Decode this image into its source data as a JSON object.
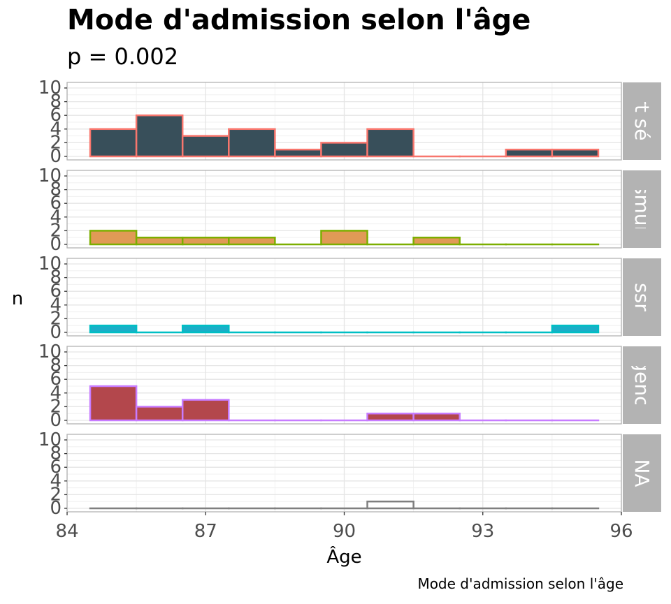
{
  "title": "Mode d'admission selon l'âge",
  "subtitle": "p = 0.002",
  "caption": "Mode d'admission selon l'âge",
  "chart_data": {
    "type": "bar",
    "subtype": "faceted-histogram",
    "xlabel": "Âge",
    "ylabel": "n",
    "xlim": [
      84,
      96
    ],
    "x_ticks": [
      84,
      87,
      90,
      93,
      96
    ],
    "ylim": [
      0,
      10
    ],
    "y_ticks": [
      0,
      2,
      4,
      6,
      8,
      10
    ],
    "grid": true,
    "bin_width": 1,
    "bins": [
      85,
      86,
      87,
      88,
      89,
      90,
      91,
      92,
      93,
      94,
      95
    ],
    "facets": [
      {
        "label": "court séjour",
        "visible_label": "urt séjo",
        "fill": "#384f5a",
        "outline": "#f8766d",
        "values": [
          4,
          6,
          3,
          4,
          1,
          2,
          4,
          0,
          0,
          1,
          1
        ]
      },
      {
        "label": "smur",
        "visible_label": "smur",
        "fill": "#e09a56",
        "outline": "#7cae00",
        "values": [
          2,
          1,
          1,
          1,
          0,
          2,
          0,
          1,
          0,
          0,
          0
        ]
      },
      {
        "label": "ssr",
        "visible_label": "ssr",
        "fill": "#1aaec8",
        "outline": "#00bfc4",
        "values": [
          1,
          0,
          1,
          0,
          0,
          0,
          0,
          0,
          0,
          0,
          1
        ]
      },
      {
        "label": "urgence",
        "visible_label": "rgence",
        "fill": "#b3474c",
        "outline": "#c77cff",
        "values": [
          5,
          2,
          3,
          0,
          0,
          0,
          1,
          1,
          0,
          0,
          0
        ]
      },
      {
        "label": "NA",
        "visible_label": "NA",
        "fill": "#ffffff",
        "outline": "#7f7f7f",
        "values": [
          0,
          0,
          0,
          0,
          0,
          0,
          1,
          0,
          0,
          0,
          0
        ]
      }
    ],
    "colors": {
      "strip": "#b3b3b3",
      "panel_border": "#b3b3b3",
      "grid": "#e5e5e5",
      "tick_text": "#4d4d4d"
    }
  }
}
